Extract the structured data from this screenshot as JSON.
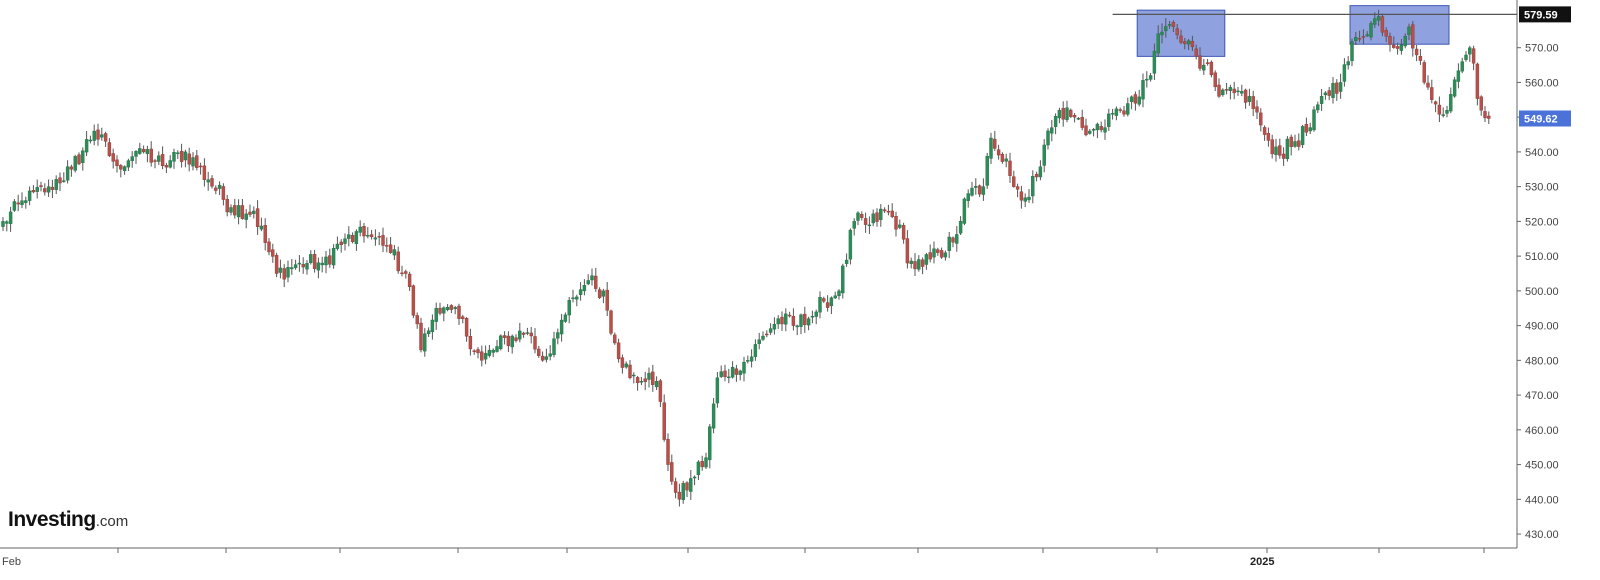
{
  "brand": {
    "name": "Investing",
    "suffix": ".com"
  },
  "colors": {
    "up": "#2e8b57",
    "down": "#b5504a",
    "wick": "#555555",
    "grid_line": "#555555",
    "box_fill": "#6f86d6",
    "box_stroke": "#3b55b8",
    "tag_black": "#111111",
    "tag_blue": "#4a72d9",
    "axis": "#666666"
  },
  "chart_data": {
    "type": "candlestick",
    "title": "",
    "xlabel": "",
    "ylabel": "",
    "ylim": [
      428,
      582
    ],
    "y_ticks": [
      "430.00",
      "440.00",
      "450.00",
      "460.00",
      "470.00",
      "480.00",
      "490.00",
      "500.00",
      "510.00",
      "520.00",
      "530.00",
      "540.00",
      "550.00",
      "560.00",
      "570.00"
    ],
    "x_labels": [
      {
        "label": "Feb",
        "bold": false
      },
      {
        "label": "2025",
        "bold": true
      }
    ],
    "resistance_level": 579.59,
    "resistance_label": "579.59",
    "last_price": 549.62,
    "last_price_label": "549.62",
    "anchors": [
      {
        "i": 0,
        "p": 520
      },
      {
        "i": 6,
        "p": 526
      },
      {
        "i": 12,
        "p": 530
      },
      {
        "i": 18,
        "p": 535
      },
      {
        "i": 24,
        "p": 546
      },
      {
        "i": 30,
        "p": 536
      },
      {
        "i": 36,
        "p": 541
      },
      {
        "i": 42,
        "p": 536
      },
      {
        "i": 48,
        "p": 540
      },
      {
        "i": 54,
        "p": 532
      },
      {
        "i": 60,
        "p": 524
      },
      {
        "i": 66,
        "p": 523
      },
      {
        "i": 72,
        "p": 505
      },
      {
        "i": 78,
        "p": 508
      },
      {
        "i": 84,
        "p": 508
      },
      {
        "i": 90,
        "p": 515
      },
      {
        "i": 96,
        "p": 516
      },
      {
        "i": 102,
        "p": 511
      },
      {
        "i": 106,
        "p": 505
      },
      {
        "i": 110,
        "p": 483
      },
      {
        "i": 114,
        "p": 495
      },
      {
        "i": 120,
        "p": 492
      },
      {
        "i": 126,
        "p": 480
      },
      {
        "i": 130,
        "p": 484
      },
      {
        "i": 134,
        "p": 487
      },
      {
        "i": 138,
        "p": 488
      },
      {
        "i": 142,
        "p": 480
      },
      {
        "i": 146,
        "p": 488
      },
      {
        "i": 150,
        "p": 498
      },
      {
        "i": 154,
        "p": 503
      },
      {
        "i": 158,
        "p": 500
      },
      {
        "i": 161,
        "p": 485
      },
      {
        "i": 165,
        "p": 475
      },
      {
        "i": 168,
        "p": 474
      },
      {
        "i": 172,
        "p": 474
      },
      {
        "i": 175,
        "p": 450
      },
      {
        "i": 178,
        "p": 440
      },
      {
        "i": 181,
        "p": 446
      },
      {
        "i": 185,
        "p": 452
      },
      {
        "i": 188,
        "p": 475
      },
      {
        "i": 192,
        "p": 478
      },
      {
        "i": 196,
        "p": 480
      },
      {
        "i": 200,
        "p": 487
      },
      {
        "i": 204,
        "p": 492
      },
      {
        "i": 208,
        "p": 490
      },
      {
        "i": 212,
        "p": 492
      },
      {
        "i": 216,
        "p": 497
      },
      {
        "i": 220,
        "p": 500
      },
      {
        "i": 224,
        "p": 520
      },
      {
        "i": 228,
        "p": 519
      },
      {
        "i": 232,
        "p": 523
      },
      {
        "i": 236,
        "p": 519
      },
      {
        "i": 238,
        "p": 508
      },
      {
        "i": 242,
        "p": 507
      },
      {
        "i": 246,
        "p": 511
      },
      {
        "i": 250,
        "p": 514
      },
      {
        "i": 254,
        "p": 528
      },
      {
        "i": 258,
        "p": 530
      },
      {
        "i": 260,
        "p": 544
      },
      {
        "i": 264,
        "p": 538
      },
      {
        "i": 266,
        "p": 530
      },
      {
        "i": 270,
        "p": 527
      },
      {
        "i": 274,
        "p": 542
      },
      {
        "i": 278,
        "p": 552
      },
      {
        "i": 282,
        "p": 550
      },
      {
        "i": 286,
        "p": 546
      },
      {
        "i": 290,
        "p": 547
      },
      {
        "i": 294,
        "p": 552
      },
      {
        "i": 298,
        "p": 554
      },
      {
        "i": 302,
        "p": 562
      },
      {
        "i": 304,
        "p": 574
      },
      {
        "i": 308,
        "p": 576
      },
      {
        "i": 312,
        "p": 572
      },
      {
        "i": 316,
        "p": 565
      },
      {
        "i": 320,
        "p": 556
      },
      {
        "i": 324,
        "p": 557
      },
      {
        "i": 328,
        "p": 556
      },
      {
        "i": 332,
        "p": 545
      },
      {
        "i": 336,
        "p": 539
      },
      {
        "i": 340,
        "p": 543
      },
      {
        "i": 344,
        "p": 547
      },
      {
        "i": 348,
        "p": 557
      },
      {
        "i": 352,
        "p": 560
      },
      {
        "i": 356,
        "p": 573
      },
      {
        "i": 360,
        "p": 577
      },
      {
        "i": 362,
        "p": 579
      },
      {
        "i": 366,
        "p": 570
      },
      {
        "i": 370,
        "p": 576
      },
      {
        "i": 374,
        "p": 560
      },
      {
        "i": 376,
        "p": 555
      },
      {
        "i": 380,
        "p": 552
      },
      {
        "i": 384,
        "p": 566
      },
      {
        "i": 386,
        "p": 570
      },
      {
        "i": 389,
        "p": 552
      },
      {
        "i": 391,
        "p": 549.62
      }
    ]
  }
}
